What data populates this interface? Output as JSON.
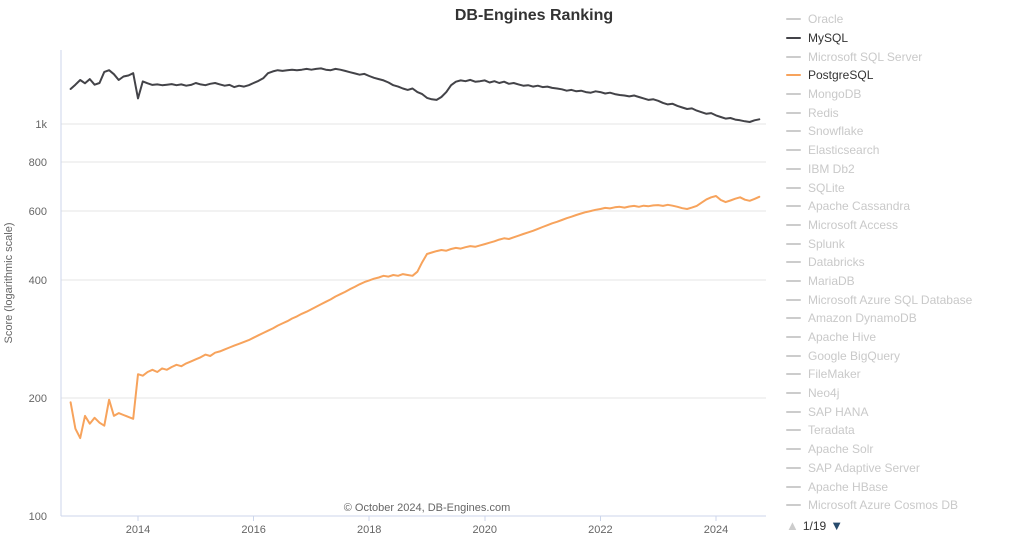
{
  "title": "DB-Engines Ranking",
  "y_axis_title": "Score (logarithmic scale)",
  "footer": "© October 2024, DB-Engines.com",
  "colors": {
    "mysql": "#434348",
    "postgresql": "#f7a35c",
    "inactive_swatch": "#cccccc",
    "inactive_label": "#c9c9c9",
    "active_label": "#333333",
    "grid": "#e6e6e6",
    "axis": "#ccd6eb",
    "tick_label": "#666666",
    "pager_up": "#cccccc",
    "pager_down": "#274b6d"
  },
  "legend": {
    "items": [
      {
        "label": "Oracle",
        "active": false
      },
      {
        "label": "MySQL",
        "active": true,
        "color": "#434348"
      },
      {
        "label": "Microsoft SQL Server",
        "active": false
      },
      {
        "label": "PostgreSQL",
        "active": true,
        "color": "#f7a35c"
      },
      {
        "label": "MongoDB",
        "active": false
      },
      {
        "label": "Redis",
        "active": false
      },
      {
        "label": "Snowflake",
        "active": false
      },
      {
        "label": "Elasticsearch",
        "active": false
      },
      {
        "label": "IBM Db2",
        "active": false
      },
      {
        "label": "SQLite",
        "active": false
      },
      {
        "label": "Apache Cassandra",
        "active": false
      },
      {
        "label": "Microsoft Access",
        "active": false
      },
      {
        "label": "Splunk",
        "active": false
      },
      {
        "label": "Databricks",
        "active": false
      },
      {
        "label": "MariaDB",
        "active": false
      },
      {
        "label": "Microsoft Azure SQL Database",
        "active": false
      },
      {
        "label": "Amazon DynamoDB",
        "active": false
      },
      {
        "label": "Apache Hive",
        "active": false
      },
      {
        "label": "Google BigQuery",
        "active": false
      },
      {
        "label": "FileMaker",
        "active": false
      },
      {
        "label": "Neo4j",
        "active": false
      },
      {
        "label": "SAP HANA",
        "active": false
      },
      {
        "label": "Teradata",
        "active": false
      },
      {
        "label": "Apache Solr",
        "active": false
      },
      {
        "label": "SAP Adaptive Server",
        "active": false
      },
      {
        "label": "Apache HBase",
        "active": false
      },
      {
        "label": "Microsoft Azure Cosmos DB",
        "active": false
      }
    ],
    "pager": {
      "up": "▲",
      "label": "1/19",
      "down": "▼"
    }
  },
  "chart_data": {
    "type": "line",
    "title": "DB-Engines Ranking",
    "xlabel": "",
    "ylabel": "Score (logarithmic scale)",
    "y_scale": "log",
    "ylim": [
      100,
      1500
    ],
    "grid": true,
    "legend_position": "right",
    "x_start": 2012.8333,
    "x_step_months": 1,
    "x_ticks": [
      2014,
      2016,
      2018,
      2020,
      2022,
      2024
    ],
    "y_ticks": [
      {
        "value": 1000,
        "label": "1k"
      },
      {
        "value": 800,
        "label": "800"
      },
      {
        "value": 600,
        "label": "600"
      },
      {
        "value": 400,
        "label": "400"
      },
      {
        "value": 200,
        "label": "200"
      },
      {
        "value": 100,
        "label": "100"
      }
    ],
    "series": [
      {
        "name": "MySQL",
        "color": "#434348",
        "values": [
          1228,
          1260,
          1295,
          1270,
          1302,
          1260,
          1272,
          1358,
          1372,
          1340,
          1295,
          1322,
          1330,
          1348,
          1162,
          1284,
          1270,
          1258,
          1262,
          1256,
          1260,
          1264,
          1256,
          1262,
          1252,
          1258,
          1272,
          1262,
          1256,
          1266,
          1272,
          1262,
          1252,
          1258,
          1242,
          1252,
          1246,
          1256,
          1272,
          1288,
          1308,
          1348,
          1362,
          1372,
          1366,
          1372,
          1376,
          1372,
          1376,
          1382,
          1376,
          1382,
          1386,
          1376,
          1372,
          1382,
          1376,
          1366,
          1356,
          1346,
          1336,
          1342,
          1326,
          1312,
          1302,
          1292,
          1276,
          1256,
          1246,
          1232,
          1222,
          1232,
          1206,
          1192,
          1166,
          1156,
          1152,
          1172,
          1206,
          1256,
          1282,
          1292,
          1286,
          1296,
          1282,
          1286,
          1292,
          1276,
          1286,
          1272,
          1282,
          1266,
          1272,
          1262,
          1252,
          1256,
          1246,
          1252,
          1242,
          1246,
          1236,
          1232,
          1226,
          1216,
          1222,
          1212,
          1216,
          1206,
          1202,
          1212,
          1206,
          1196,
          1202,
          1192,
          1186,
          1182,
          1176,
          1182,
          1172,
          1162,
          1152,
          1156,
          1146,
          1132,
          1122,
          1126,
          1112,
          1102,
          1092,
          1096,
          1082,
          1072,
          1062,
          1066,
          1052,
          1042,
          1032,
          1036,
          1026,
          1022,
          1016,
          1012,
          1022,
          1028
        ]
      },
      {
        "name": "PostgreSQL",
        "color": "#f7a35c",
        "values": [
          195,
          167,
          158,
          180,
          172,
          178,
          173,
          170,
          198,
          180,
          183,
          181,
          179,
          177,
          230,
          228,
          233,
          236,
          233,
          238,
          236,
          240,
          243,
          241,
          245,
          248,
          251,
          254,
          258,
          256,
          261,
          263,
          266,
          269,
          272,
          275,
          278,
          281,
          285,
          289,
          293,
          297,
          301,
          306,
          310,
          314,
          319,
          323,
          328,
          332,
          337,
          342,
          347,
          352,
          357,
          363,
          368,
          373,
          379,
          384,
          390,
          395,
          399,
          403,
          406,
          410,
          408,
          412,
          410,
          414,
          412,
          410,
          420,
          444,
          466,
          470,
          474,
          477,
          475,
          480,
          483,
          481,
          485,
          488,
          486,
          490,
          494,
          498,
          502,
          507,
          511,
          509,
          514,
          519,
          524,
          529,
          534,
          540,
          546,
          552,
          558,
          563,
          569,
          575,
          580,
          586,
          591,
          596,
          600,
          604,
          607,
          611,
          609,
          613,
          615,
          612,
          616,
          618,
          615,
          619,
          617,
          620,
          621,
          618,
          622,
          619,
          615,
          610,
          607,
          612,
          618,
          630,
          642,
          650,
          655,
          640,
          632,
          638,
          645,
          650,
          641,
          637,
          644,
          652
        ]
      }
    ]
  }
}
